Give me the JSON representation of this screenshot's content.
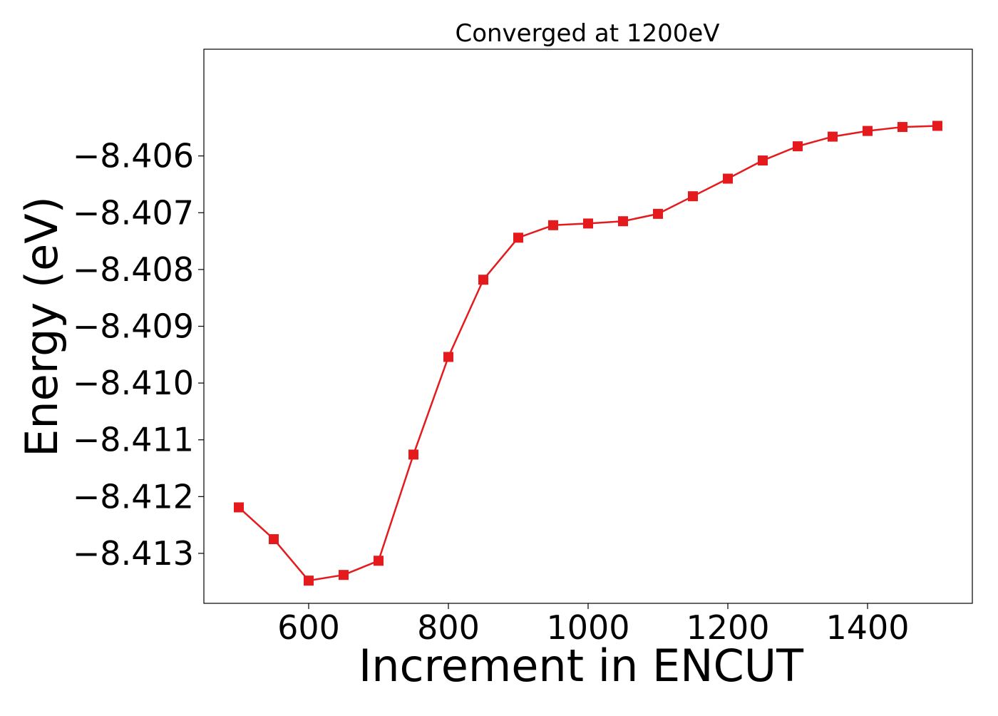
{
  "chart_data": {
    "type": "line",
    "title": "Converged at 1200eV",
    "xlabel": "Increment in ENCUT",
    "ylabel": "Energy (eV)",
    "xlim": [
      450,
      1550
    ],
    "ylim": [
      -8.41388,
      -8.40412
    ],
    "x_ticks": [
      600,
      800,
      1000,
      1200,
      1400
    ],
    "x_tick_labels": [
      "600",
      "800",
      "1000",
      "1200",
      "1400"
    ],
    "y_ticks": [
      -8.406,
      -8.407,
      -8.408,
      -8.409,
      -8.41,
      -8.411,
      -8.412,
      -8.413
    ],
    "y_tick_labels": [
      "−8.406",
      "−8.407",
      "−8.408",
      "−8.409",
      "−8.410",
      "−8.411",
      "−8.412",
      "−8.413"
    ],
    "grid": false,
    "series": [
      {
        "color": "#e41a1c",
        "marker": "square",
        "x": [
          500,
          550,
          600,
          650,
          700,
          750,
          800,
          850,
          900,
          950,
          1000,
          1050,
          1100,
          1150,
          1200,
          1250,
          1300,
          1350,
          1400,
          1450,
          1500
        ],
        "y": [
          -8.41219,
          -8.41275,
          -8.41348,
          -8.41338,
          -8.41313,
          -8.41126,
          -8.40954,
          -8.40818,
          -8.40744,
          -8.40722,
          -8.40719,
          -8.40715,
          -8.40702,
          -8.40671,
          -8.4064,
          -8.40608,
          -8.40583,
          -8.40566,
          -8.40556,
          -8.40549,
          -8.40547
        ]
      }
    ]
  }
}
